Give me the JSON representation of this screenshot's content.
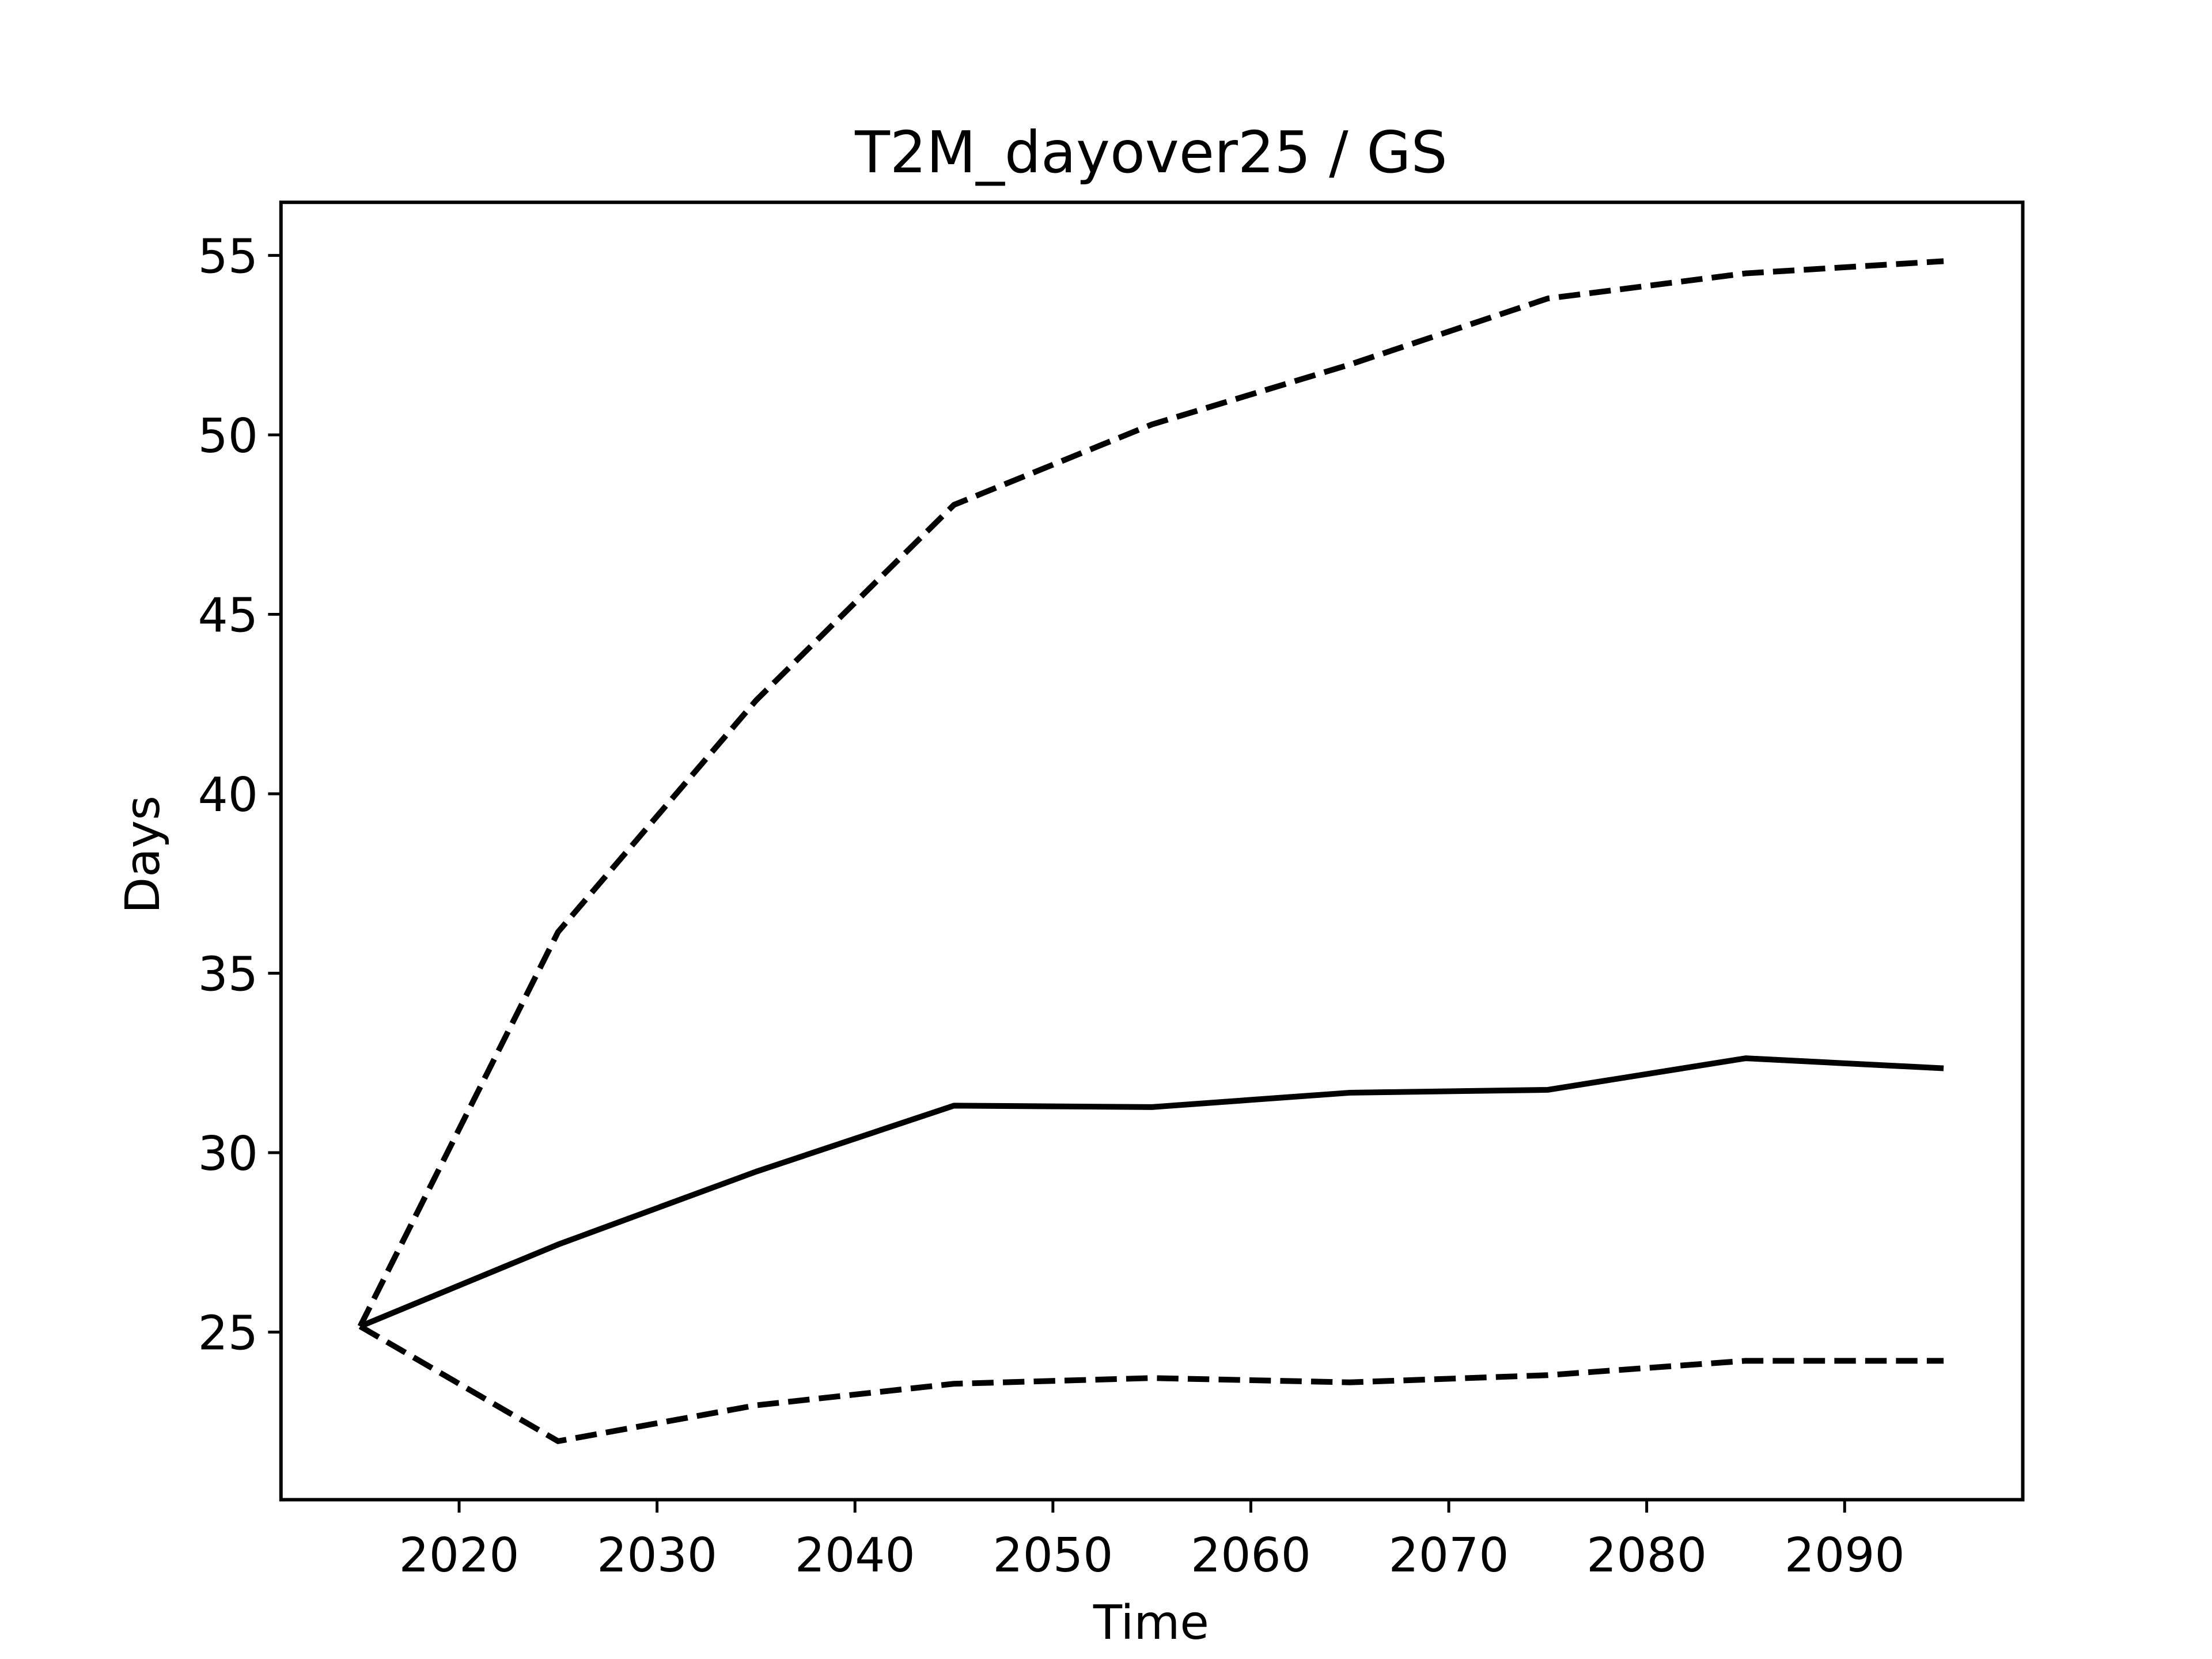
{
  "chart_data": {
    "type": "line",
    "title": "T2M_dayover25 / GS",
    "xlabel": "Time",
    "ylabel": "Days",
    "x": [
      2015,
      2025,
      2035,
      2045,
      2055,
      2065,
      2075,
      2085,
      2095
    ],
    "series": [
      {
        "color": "#000000",
        "dashed": false,
        "values": [
          25.16,
          27.44,
          29.47,
          31.31,
          31.27,
          31.67,
          31.75,
          32.63,
          32.35
        ]
      },
      {
        "color": "#000000",
        "dashed": true,
        "values": [
          25.16,
          36.15,
          42.6,
          48.05,
          50.29,
          51.96,
          53.8,
          54.5,
          54.84
        ]
      },
      {
        "color": "#000000",
        "dashed": true,
        "values": [
          25.16,
          21.96,
          22.96,
          23.56,
          23.72,
          23.6,
          23.8,
          24.2,
          24.2
        ]
      }
    ],
    "xlim": [
      2011,
      2099
    ],
    "xticks": [
      2020,
      2030,
      2040,
      2050,
      2060,
      2070,
      2080,
      2090
    ],
    "ylim": [
      20.33,
      56.48
    ],
    "yticks": [
      25,
      30,
      35,
      40,
      45,
      50,
      55
    ],
    "grid": false
  }
}
